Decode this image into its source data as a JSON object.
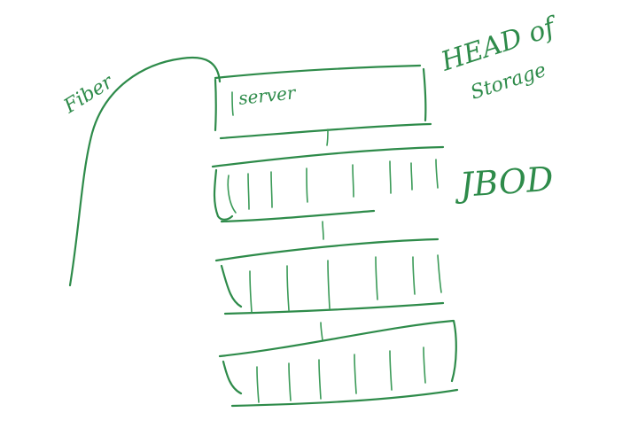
{
  "labels": {
    "fiber": "Fiber",
    "server": "server",
    "head_line1": "HEAD of",
    "head_line2": "Storage",
    "jbod": "JBOD"
  },
  "jbod_units": 3,
  "colors": {
    "ink": "#2e8b4a",
    "background": "#ffffff"
  }
}
